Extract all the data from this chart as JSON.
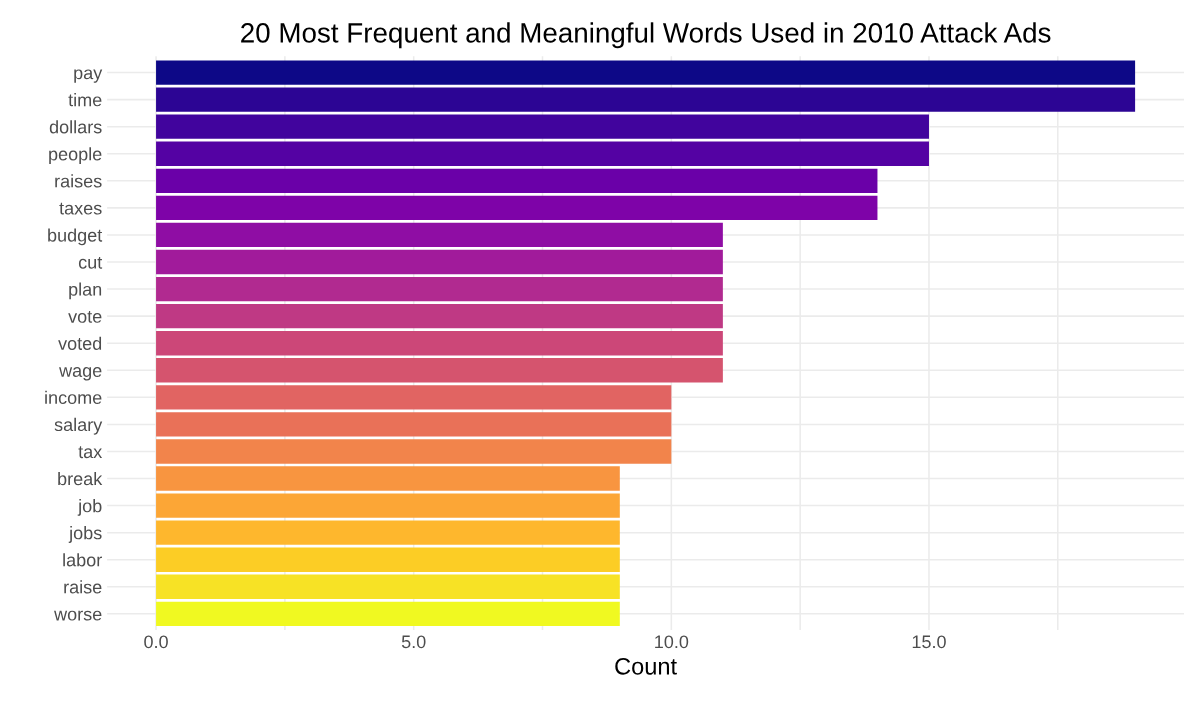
{
  "chart_data": {
    "type": "bar",
    "orientation": "horizontal",
    "title": "20 Most Frequent and Meaningful Words Used in 2010 Attack Ads",
    "xlabel": "Count",
    "categories": [
      "pay",
      "time",
      "dollars",
      "people",
      "raises",
      "taxes",
      "budget",
      "cut",
      "plan",
      "vote",
      "voted",
      "wage",
      "income",
      "salary",
      "tax",
      "break",
      "job",
      "jobs",
      "labor",
      "raise",
      "worse"
    ],
    "values": [
      19,
      19,
      15,
      15,
      14,
      14,
      11,
      11,
      11,
      11,
      11,
      11,
      10,
      10,
      10,
      9,
      9,
      9,
      9,
      9,
      9
    ],
    "colors": [
      "#0d0887",
      "#2c0594",
      "#41049d",
      "#5402a3",
      "#6a00a8",
      "#7e03a8",
      "#8f0da4",
      "#a11b9b",
      "#b12a90",
      "#bf3984",
      "#cc4778",
      "#d5546e",
      "#e16462",
      "#e97158",
      "#f2844b",
      "#f89540",
      "#fca636",
      "#feb72d",
      "#fccd25",
      "#f7e225",
      "#f0f921"
    ],
    "xlim": [
      -0.95,
      19.95
    ],
    "xticks": [
      {
        "value": 0,
        "label": "0.0"
      },
      {
        "value": 2.5,
        "label": null
      },
      {
        "value": 5,
        "label": "5.0"
      },
      {
        "value": 7.5,
        "label": null
      },
      {
        "value": 10,
        "label": "10.0"
      },
      {
        "value": 12.5,
        "label": null
      },
      {
        "value": 15,
        "label": "15.0"
      },
      {
        "value": 17.5,
        "label": null
      }
    ],
    "grid": true,
    "legend": false
  }
}
